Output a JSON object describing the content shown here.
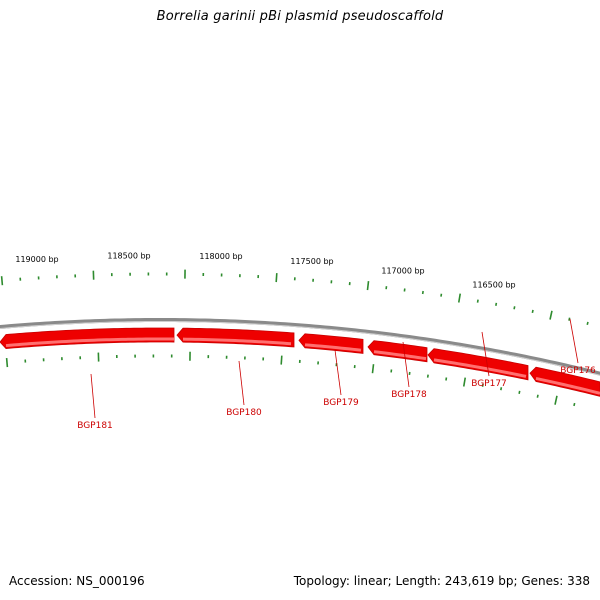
{
  "title": "Borrelia garinii pBi plasmid pseudoscaffold",
  "footer": {
    "accession": "Accession: NS_000196",
    "summary": "Topology: linear; Length: 243,619 bp; Genes: 338"
  },
  "colors": {
    "backbone": "#8a8a8a",
    "gene": "#ee0000",
    "tick": "#2e8b2e",
    "gene_label": "#cc0000"
  },
  "scale_labels": [
    "119000 bp",
    "118500 bp",
    "118000 bp",
    "117500 bp",
    "117000 bp",
    "116500 bp"
  ],
  "genes": [
    {
      "name": "BGP181"
    },
    {
      "name": "BGP180"
    },
    {
      "name": "BGP179"
    },
    {
      "name": "BGP178"
    },
    {
      "name": "BGP177"
    },
    {
      "name": "BGP176"
    }
  ]
}
